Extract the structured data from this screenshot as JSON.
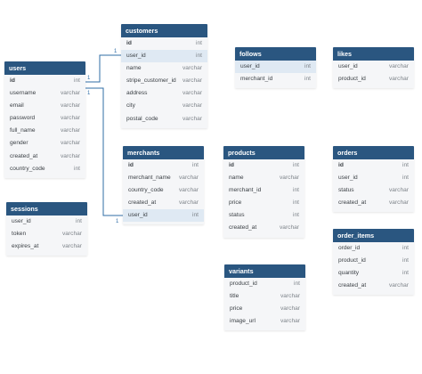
{
  "accent_color": "#2a5680",
  "fk_highlight_color": "#dfe9f3",
  "tables": [
    {
      "id": "users",
      "name": "users",
      "columns": [
        {
          "name": "id",
          "type": "int",
          "pk": true
        },
        {
          "name": "username",
          "type": "varchar"
        },
        {
          "name": "email",
          "type": "varchar"
        },
        {
          "name": "password",
          "type": "varchar"
        },
        {
          "name": "full_name",
          "type": "varchar"
        },
        {
          "name": "gender",
          "type": "varchar"
        },
        {
          "name": "created_at",
          "type": "varchar"
        },
        {
          "name": "country_code",
          "type": "int"
        }
      ]
    },
    {
      "id": "customers",
      "name": "customers",
      "columns": [
        {
          "name": "id",
          "type": "int",
          "pk": true
        },
        {
          "name": "user_id",
          "type": "int",
          "fk": true
        },
        {
          "name": "name",
          "type": "varchar"
        },
        {
          "name": "stripe_customer_id",
          "type": "varchar"
        },
        {
          "name": "address",
          "type": "varchar"
        },
        {
          "name": "city",
          "type": "varchar"
        },
        {
          "name": "postal_code",
          "type": "varchar"
        }
      ]
    },
    {
      "id": "follows",
      "name": "follows",
      "columns": [
        {
          "name": "user_id",
          "type": "int",
          "fk": true
        },
        {
          "name": "merchant_id",
          "type": "int"
        }
      ]
    },
    {
      "id": "likes",
      "name": "likes",
      "columns": [
        {
          "name": "user_id",
          "type": "varchar"
        },
        {
          "name": "product_id",
          "type": "varchar"
        }
      ]
    },
    {
      "id": "merchants",
      "name": "merchants",
      "columns": [
        {
          "name": "id",
          "type": "int",
          "pk": true
        },
        {
          "name": "merchant_name",
          "type": "varchar"
        },
        {
          "name": "country_code",
          "type": "varchar"
        },
        {
          "name": "created_at",
          "type": "varchar"
        },
        {
          "name": "user_id",
          "type": "int",
          "fk": true
        }
      ]
    },
    {
      "id": "products",
      "name": "products",
      "columns": [
        {
          "name": "id",
          "type": "int",
          "pk": true
        },
        {
          "name": "name",
          "type": "varchar"
        },
        {
          "name": "merchant_id",
          "type": "int"
        },
        {
          "name": "price",
          "type": "int"
        },
        {
          "name": "status",
          "type": "int"
        },
        {
          "name": "created_at",
          "type": "varchar"
        }
      ]
    },
    {
      "id": "orders",
      "name": "orders",
      "columns": [
        {
          "name": "id",
          "type": "int",
          "pk": true
        },
        {
          "name": "user_id",
          "type": "int"
        },
        {
          "name": "status",
          "type": "varchar"
        },
        {
          "name": "created_at",
          "type": "varchar"
        }
      ]
    },
    {
      "id": "sessions",
      "name": "sessions",
      "columns": [
        {
          "name": "user_id",
          "type": "int"
        },
        {
          "name": "token",
          "type": "varchar"
        },
        {
          "name": "expires_at",
          "type": "varchar"
        }
      ]
    },
    {
      "id": "order_items",
      "name": "order_items",
      "columns": [
        {
          "name": "order_id",
          "type": "int"
        },
        {
          "name": "product_id",
          "type": "int"
        },
        {
          "name": "quantity",
          "type": "int"
        },
        {
          "name": "created_at",
          "type": "varchar"
        }
      ]
    },
    {
      "id": "variants",
      "name": "variants",
      "columns": [
        {
          "name": "product_id",
          "type": "int"
        },
        {
          "name": "title",
          "type": "varchar"
        },
        {
          "name": "price",
          "type": "varchar"
        },
        {
          "name": "image_url",
          "type": "varchar"
        }
      ]
    }
  ],
  "relations": [
    {
      "from": "users.id",
      "to": "customers.user_id",
      "from_label": "1",
      "to_label": "1"
    },
    {
      "from": "users.id",
      "to": "merchants.user_id",
      "from_label": "1",
      "to_label": "1"
    }
  ]
}
